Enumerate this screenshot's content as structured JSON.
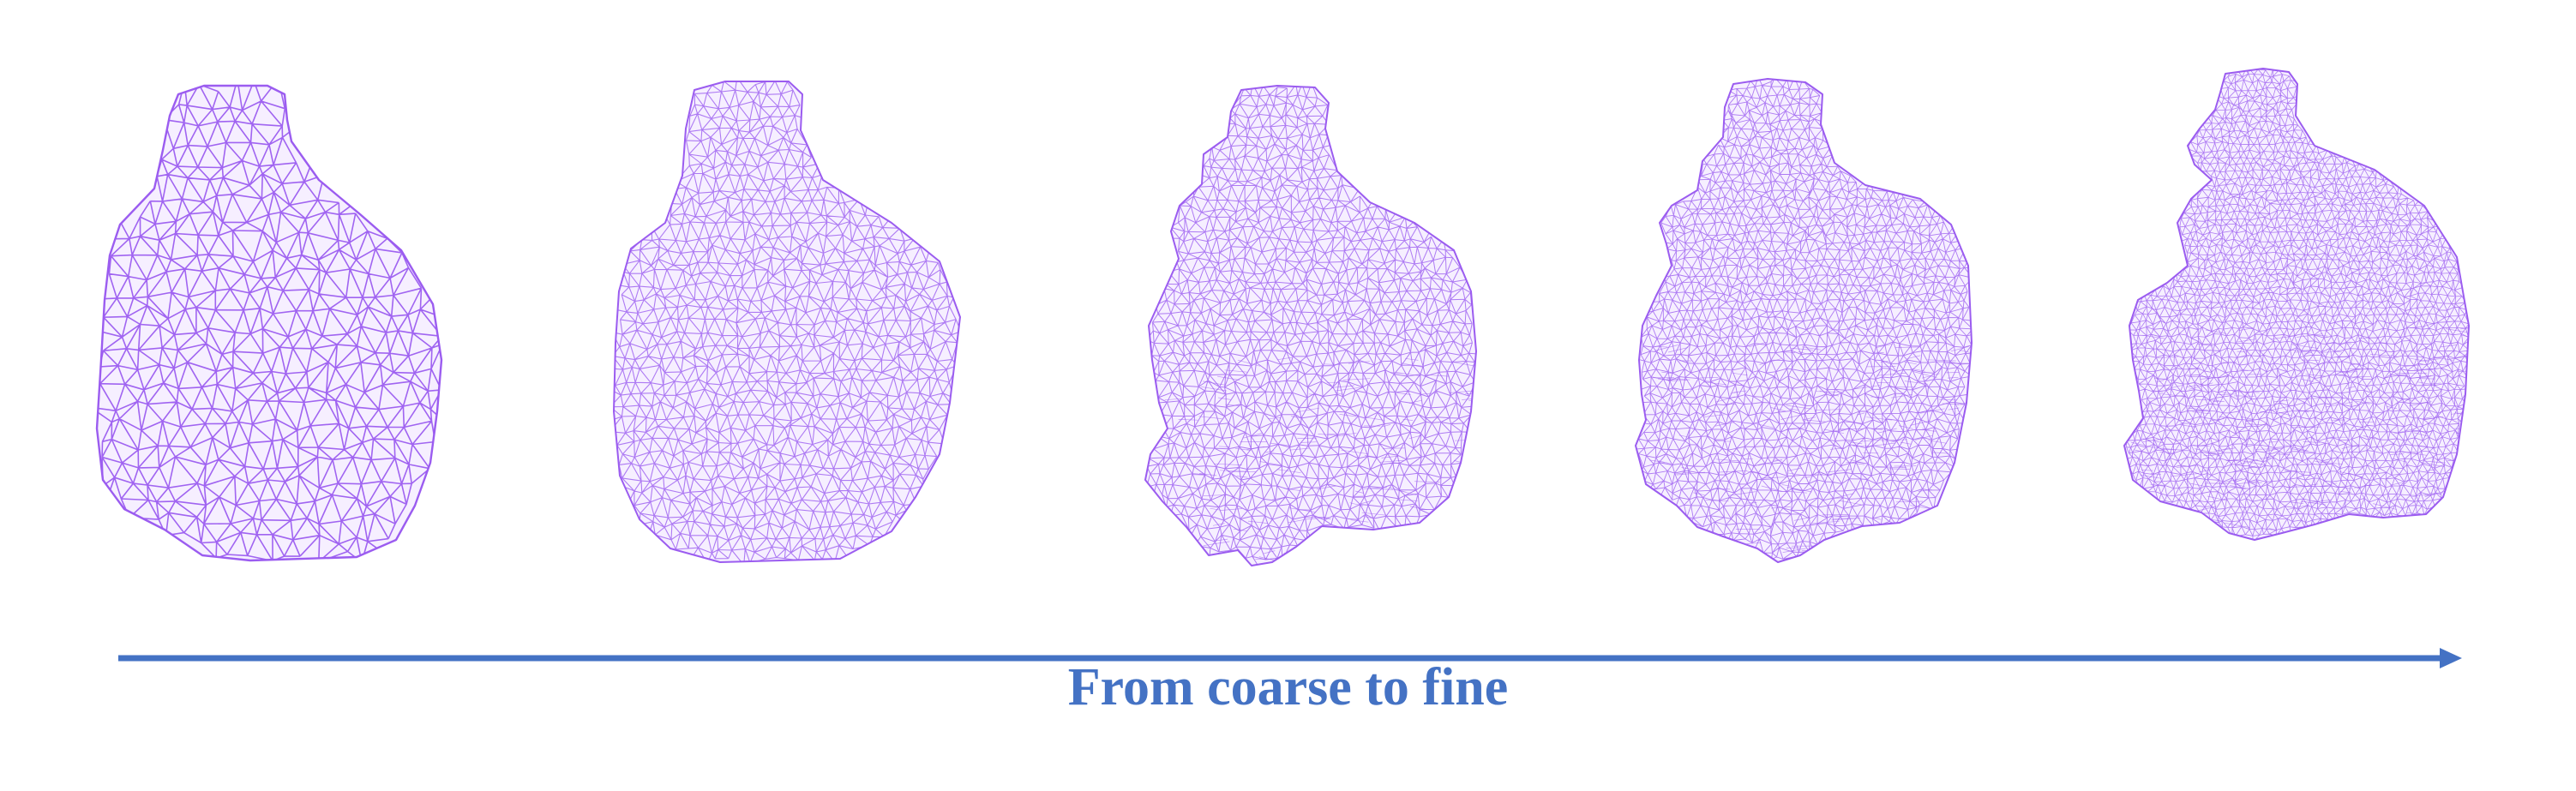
{
  "colors": {
    "mesh_stroke": "#9b5cf0",
    "mesh_fill": "#f6efff",
    "arrow": "#4472c4",
    "caption": "#4472c4",
    "background": "#ffffff"
  },
  "caption": "From coarse to fine",
  "meshes": [
    {
      "stage": 1,
      "density": "coarse"
    },
    {
      "stage": 2,
      "density": "medium"
    },
    {
      "stage": 3,
      "density": "medium-fine"
    },
    {
      "stage": 4,
      "density": "fine"
    },
    {
      "stage": 5,
      "density": "finest"
    }
  ]
}
